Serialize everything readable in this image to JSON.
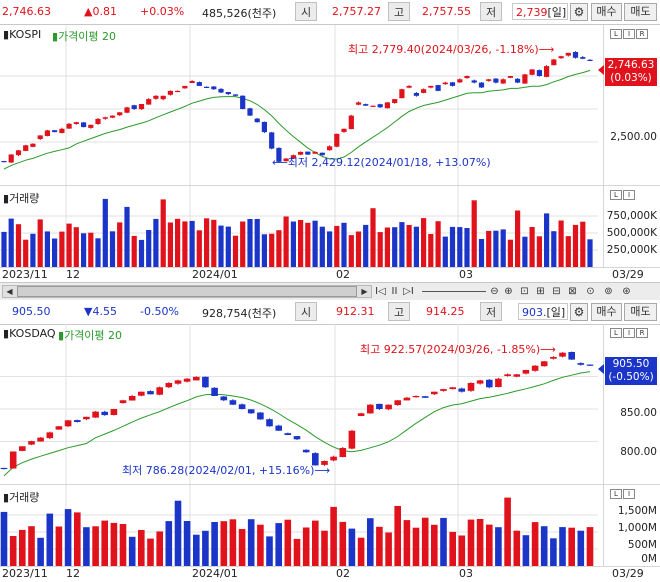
{
  "kospi": {
    "ticker": {
      "price": "2,746.63",
      "change": "▲0.81",
      "change_pct": "+0.03%",
      "volume": "485,526(천주)",
      "open_label": "시",
      "open": "2,757.27",
      "high_label": "고",
      "high": "2,757.55",
      "low_label": "저",
      "low": "2,739",
      "period": "[일]",
      "buy": "매수",
      "sell": "매도"
    },
    "panel_name": "KOSPI",
    "ma_label": "가격이평 20",
    "high_annotation": "최고 2,779.40(2024/03/26, -1.18%)",
    "low_annotation": "최저 2,429.12(2024/01/18, +13.07%)",
    "y_labels": [
      "2,500.00"
    ],
    "current_tag": {
      "price": "2,746.63",
      "pct": "(0.03%)",
      "color": "#e0121b"
    },
    "volume_label": "거래량",
    "volume_axis": [
      "750,000K",
      "500,000K",
      "250,000K"
    ],
    "dates": [
      "2023/11",
      "12",
      "2024/01",
      "02",
      "03",
      "03/29"
    ]
  },
  "toolbar": {
    "buttons": [
      "I◁",
      "II",
      "▷I",
      "⊖",
      "⊕",
      "⊡",
      "⊞",
      "⊟",
      "⊠",
      "⊙",
      "⊚",
      "⊛"
    ]
  },
  "kosdaq": {
    "ticker": {
      "price": "905.50",
      "change": "▼4.55",
      "change_pct": "-0.50%",
      "volume": "928,754(천주)",
      "open_label": "시",
      "open": "912.31",
      "high_label": "고",
      "high": "914.25",
      "low_label": "저",
      "low": "903.",
      "period": "[일]",
      "buy": "매수",
      "sell": "매도"
    },
    "panel_name": "KOSDAQ",
    "ma_label": "가격이평 20",
    "high_annotation": "최고 922.57(2024/03/26, -1.85%)",
    "low_annotation": "최저 786.28(2024/02/01, +15.16%)",
    "y_labels": [
      "850.00",
      "800.00"
    ],
    "current_tag": {
      "price": "905.50",
      "pct": "(-0.50%)",
      "color": "#1a35c8"
    },
    "volume_label": "거래량",
    "volume_axis": [
      "1,500M",
      "1,000M",
      "500M",
      "0M"
    ],
    "dates": [
      "2023/11",
      "12",
      "2024/01",
      "02",
      "03",
      "03/29"
    ]
  },
  "chart_data": [
    {
      "type": "candlestick",
      "title": "KOSPI",
      "series_close": [
        2440,
        2462,
        2475,
        2490,
        2495,
        2520,
        2535,
        2530,
        2540,
        2555,
        2560,
        2545,
        2552,
        2570,
        2575,
        2580,
        2590,
        2605,
        2600,
        2615,
        2630,
        2640,
        2640,
        2655,
        2655,
        2670,
        2685,
        2670,
        2667,
        2660,
        2650,
        2645,
        2640,
        2600,
        2580,
        2560,
        2530,
        2480,
        2440,
        2450,
        2460,
        2470,
        2462,
        2470,
        2460,
        2487,
        2525,
        2540,
        2580,
        2620,
        2610,
        2610,
        2605,
        2620,
        2630,
        2660,
        2670,
        2640,
        2660,
        2670,
        2655,
        2680,
        2670,
        2690,
        2700,
        2680,
        2665,
        2690,
        2680,
        2690,
        2700,
        2680,
        2705,
        2720,
        2700,
        2730,
        2750,
        2760,
        2770,
        2755,
        2752,
        2746.63
      ],
      "ma20_label": "가격이평 20",
      "ylim": [
        2400,
        2800
      ],
      "high": 2779.4,
      "low": 2429.12
    },
    {
      "type": "candlestick",
      "title": "KOSDAQ",
      "series_close": [
        786,
        806,
        812,
        818,
        822,
        828,
        835,
        842,
        840,
        846,
        852,
        848,
        855,
        865,
        870,
        875,
        872,
        880,
        885,
        888,
        890,
        892,
        880,
        870,
        865,
        860,
        855,
        850,
        843,
        835,
        830,
        825,
        820,
        805,
        790,
        795,
        800,
        810,
        830,
        850,
        860,
        855,
        860,
        865,
        868,
        870,
        868,
        875,
        878,
        880,
        875,
        885,
        888,
        880,
        890,
        895,
        895,
        900,
        905,
        910,
        915,
        920,
        912,
        906,
        905.5
      ],
      "ma20_label": "가격이평 20",
      "ylim": [
        780,
        930
      ],
      "high": 922.57,
      "low": 786.28
    }
  ]
}
